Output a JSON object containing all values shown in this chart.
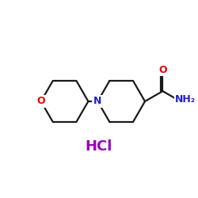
{
  "bg_color": "#ffffff",
  "line_color": "#1a1a1a",
  "O_color": "#ee0000",
  "N_color": "#2020cc",
  "NH2_color": "#2020cc",
  "O_carbonyl_color": "#ee0000",
  "HCl_color": "#9900bb",
  "HCl_text": "HCl",
  "O_text": "O",
  "N_text": "N",
  "NH2_text": "NH₂",
  "O_carbonyl_symbol": "O",
  "figsize": [
    2.5,
    2.5
  ],
  "dpi": 100
}
